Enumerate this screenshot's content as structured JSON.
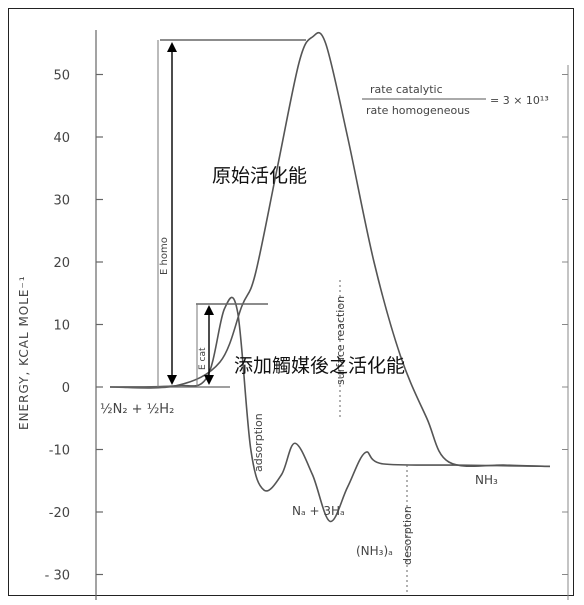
{
  "chart_data": {
    "type": "line",
    "ylabel": "ENERGY, KCAL MOLE⁻¹",
    "ylim": [
      -32,
      57
    ],
    "yticks": [
      50,
      40,
      30,
      20,
      10,
      0,
      -10,
      -20,
      -30
    ],
    "ytick_labels": [
      "50",
      "40",
      "30",
      "20",
      "10",
      "0",
      "-10",
      "-20",
      "- 30"
    ],
    "series": [
      {
        "values": [
          [
            0,
            0
          ],
          [
            1.5,
            0.2
          ],
          [
            2.5,
            4
          ],
          [
            3,
            13
          ],
          [
            3.3,
            18
          ],
          [
            3.8,
            35
          ],
          [
            4.3,
            52
          ],
          [
            4.6,
            56
          ],
          [
            4.9,
            55
          ],
          [
            5.4,
            40
          ],
          [
            6,
            20
          ],
          [
            6.6,
            5
          ],
          [
            7.2,
            -5
          ],
          [
            7.7,
            -12
          ],
          [
            9,
            -12.5
          ],
          [
            10,
            -12.7
          ]
        ]
      },
      {
        "values": [
          [
            0,
            0
          ],
          [
            1.5,
            0.2
          ],
          [
            2.2,
            1.5
          ],
          [
            2.6,
            12.5
          ],
          [
            2.9,
            12
          ],
          [
            3.2,
            -10
          ],
          [
            3.5,
            -16.5
          ],
          [
            3.9,
            -14
          ],
          [
            4.2,
            -9
          ],
          [
            4.6,
            -14
          ],
          [
            5,
            -21.5
          ],
          [
            5.4,
            -16
          ],
          [
            5.8,
            -10.5
          ],
          [
            6.2,
            -12.3
          ],
          [
            8,
            -12.5
          ],
          [
            10,
            -12.7
          ]
        ]
      }
    ],
    "labels": {
      "reactant": "½N₂ + ½H₂",
      "intermediate1": "Nₐ + 3Hₐ",
      "intermediate2": "(NH₃)ₐ",
      "product": "NH₃",
      "step1": "adsorption",
      "step2": "surface reaction",
      "step3": "desorption",
      "e_homo": "E homo",
      "e_cat": "E cat",
      "ratio_numerator": "rate catalytic",
      "ratio_denominator": "rate homogeneous",
      "ratio_value": "= 3 × 10¹³"
    },
    "annotations": {
      "uncatalyzed": "原始活化能",
      "catalyzed": "添加觸媒後之活化能"
    },
    "colors": {
      "curve": "#555555",
      "arrow": "#000000"
    }
  }
}
